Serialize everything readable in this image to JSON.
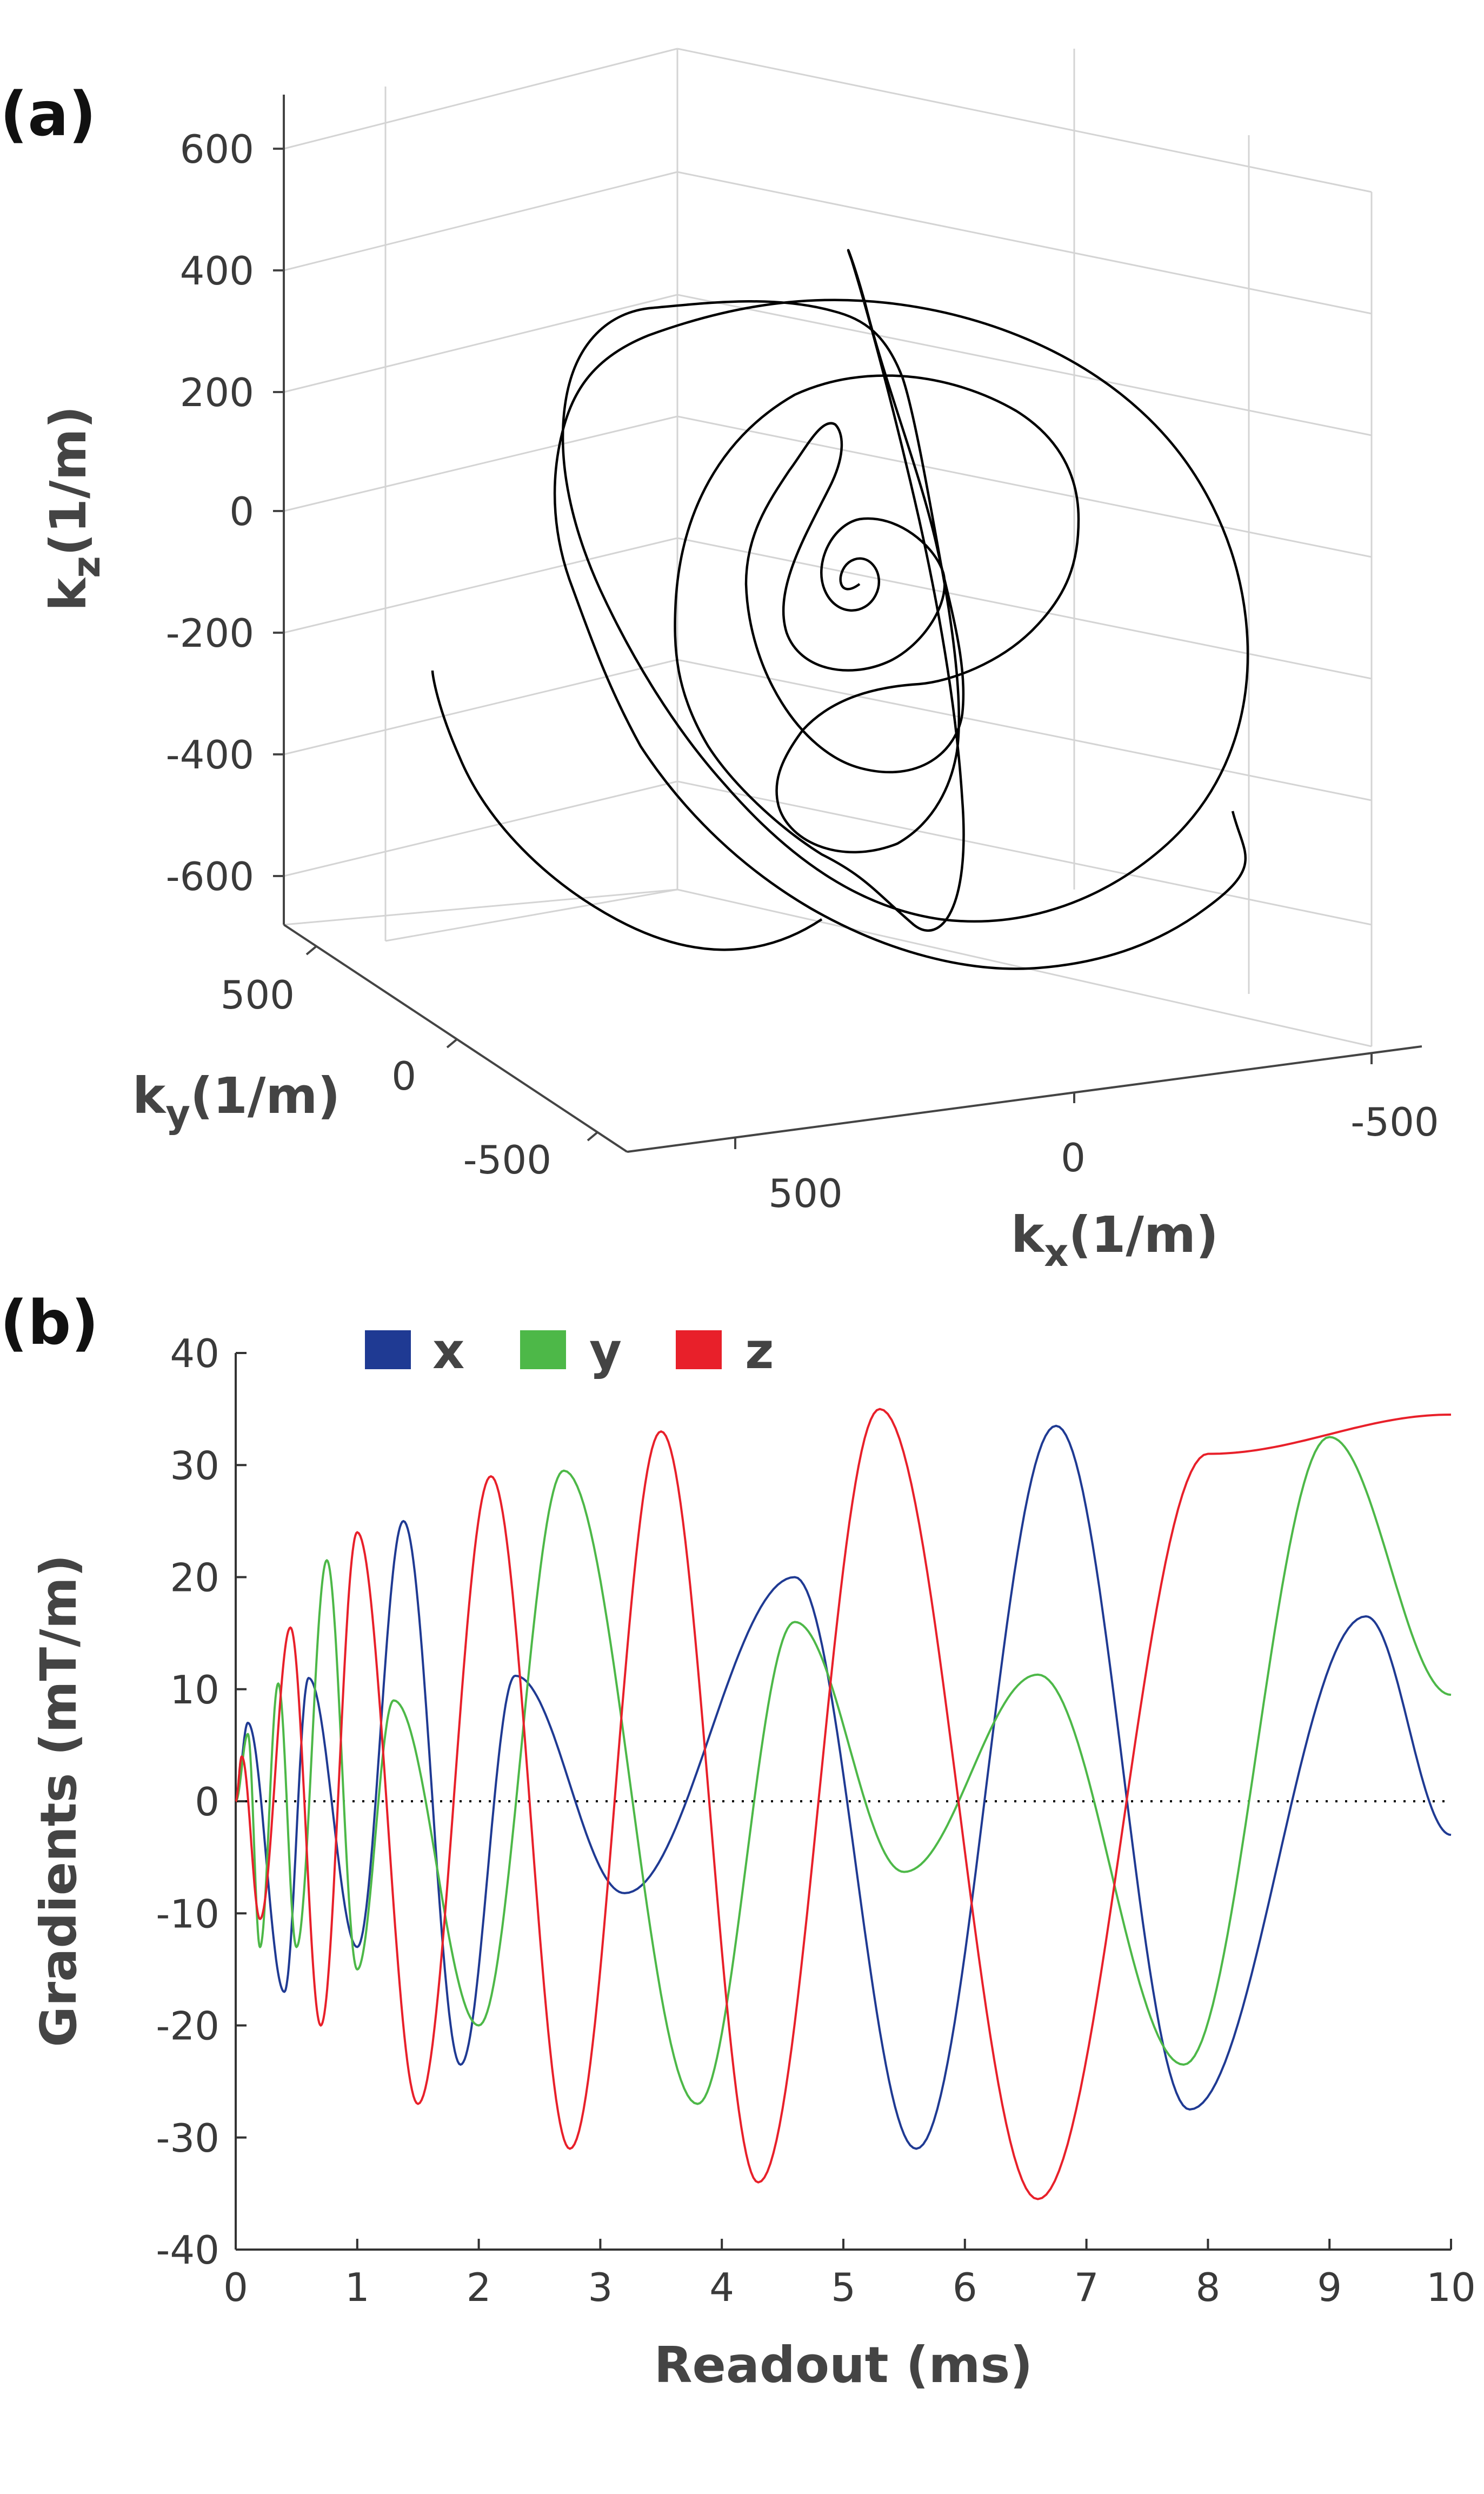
{
  "panel_a": {
    "letter": "(a)",
    "xlabel": {
      "main": "k",
      "sub": "x",
      "unit": "(1/m)"
    },
    "ylabel": {
      "main": "k",
      "sub": "y",
      "unit": "(1/m)"
    },
    "zlabel": {
      "main": "k",
      "sub": "z",
      "unit": "(1/m)"
    },
    "z_ticks": [
      "600",
      "400",
      "200",
      "0",
      "-200",
      "-400",
      "-600"
    ],
    "y_ticks": [
      "500",
      "0",
      "-500"
    ],
    "x_ticks": [
      "500",
      "0",
      "-500"
    ]
  },
  "panel_b": {
    "letter": "(b)",
    "xlabel": "Readout (ms)",
    "ylabel": "Gradients (mT/m)",
    "legend": [
      {
        "label": "x",
        "color": "#1f3a93"
      },
      {
        "label": "y",
        "color": "#4db848"
      },
      {
        "label": "z",
        "color": "#e8202a"
      }
    ]
  },
  "chart_data": [
    {
      "type": "line3d",
      "title": "",
      "xlabel": "kx(1/m)",
      "ylabel": "ky(1/m)",
      "zlabel": "kz(1/m)",
      "xlim": [
        -700,
        700
      ],
      "ylim": [
        -700,
        700
      ],
      "zlim": [
        -700,
        700
      ],
      "x_ticks": [
        500,
        0,
        -500
      ],
      "y_ticks": [
        500,
        0,
        -500
      ],
      "z_ticks": [
        600,
        400,
        200,
        0,
        -200,
        -400,
        -600
      ],
      "grid": true,
      "series": [
        {
          "name": "k-space trajectory",
          "color": "#000000",
          "description": "3D spiral trajectory starting near center and spiraling outward to radius ~650 1/m"
        }
      ]
    },
    {
      "type": "line",
      "title": "",
      "xlabel": "Readout (ms)",
      "ylabel": "Gradients (mT/m)",
      "xlim": [
        0,
        10
      ],
      "ylim": [
        -40,
        40
      ],
      "x_ticks": [
        0,
        1,
        2,
        3,
        4,
        5,
        6,
        7,
        8,
        9,
        10
      ],
      "y_ticks": [
        40,
        30,
        20,
        10,
        0,
        -10,
        -20,
        -30,
        -40
      ],
      "zero_line": "dotted",
      "legend_position": "top-left",
      "series": [
        {
          "name": "x",
          "color": "#1f3a93",
          "extrema": [
            [
              0,
              0
            ],
            [
              0.1,
              7
            ],
            [
              0.4,
              -17
            ],
            [
              0.6,
              11
            ],
            [
              1.0,
              -13
            ],
            [
              1.38,
              25
            ],
            [
              1.85,
              -23.5
            ],
            [
              2.3,
              11.2
            ],
            [
              3.2,
              -8.2
            ],
            [
              4.6,
              20
            ],
            [
              5.6,
              -31
            ],
            [
              6.75,
              33.5
            ],
            [
              7.85,
              -27.5
            ],
            [
              9.3,
              16.5
            ],
            [
              10.0,
              -3
            ]
          ]
        },
        {
          "name": "y",
          "color": "#4db848",
          "extrema": [
            [
              0,
              0
            ],
            [
              0.1,
              6
            ],
            [
              0.2,
              -13
            ],
            [
              0.35,
              10.5
            ],
            [
              0.5,
              -13
            ],
            [
              0.75,
              21.5
            ],
            [
              1.0,
              -15
            ],
            [
              1.3,
              9
            ],
            [
              2.0,
              -20
            ],
            [
              2.7,
              29.5
            ],
            [
              3.8,
              -27
            ],
            [
              4.6,
              16
            ],
            [
              5.5,
              -6.3
            ],
            [
              6.6,
              11.3
            ],
            [
              7.8,
              -23.5
            ],
            [
              9.0,
              32.5
            ],
            [
              10.0,
              9.5
            ]
          ]
        },
        {
          "name": "z",
          "color": "#e8202a",
          "extrema": [
            [
              0,
              0
            ],
            [
              0.05,
              4
            ],
            [
              0.2,
              -10.5
            ],
            [
              0.45,
              15.5
            ],
            [
              0.7,
              -20
            ],
            [
              1.0,
              24
            ],
            [
              1.5,
              -27
            ],
            [
              2.1,
              29
            ],
            [
              2.75,
              -31
            ],
            [
              3.5,
              33
            ],
            [
              4.3,
              -34
            ],
            [
              5.3,
              35
            ],
            [
              6.6,
              -35.5
            ],
            [
              8.0,
              31
            ],
            [
              10.0,
              34.5
            ]
          ]
        }
      ]
    }
  ]
}
